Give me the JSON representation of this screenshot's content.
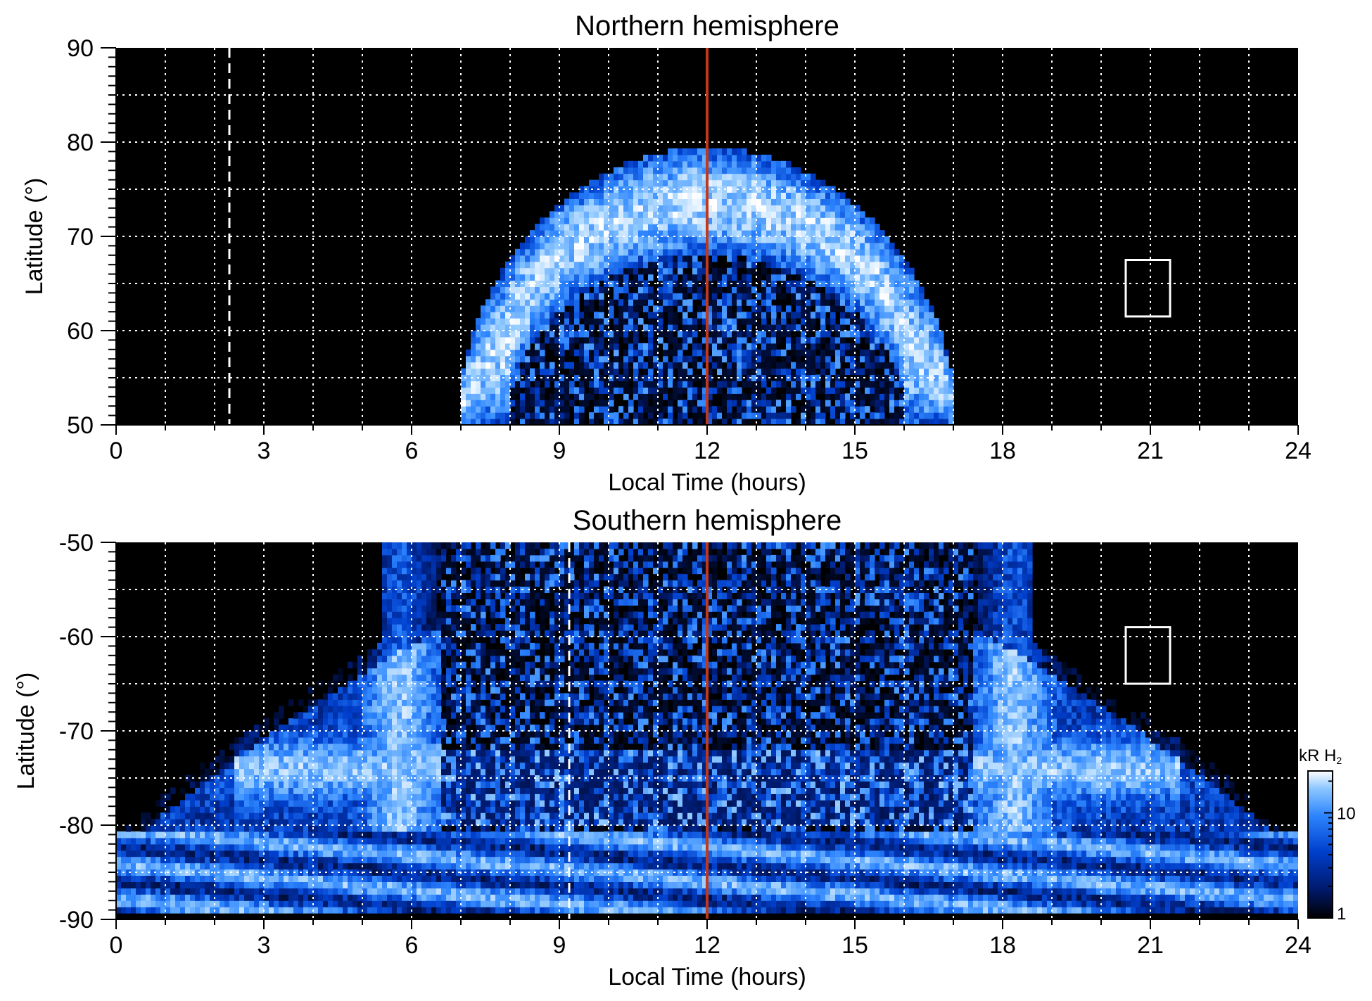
{
  "figure": {
    "colorbar": {
      "label_main": "kR H",
      "label_sub": "2",
      "ticks": [
        {
          "value": 1,
          "label": "1"
        },
        {
          "value": 10,
          "label": "10"
        }
      ],
      "range": [
        1,
        25
      ],
      "scale": "log",
      "colormap": [
        "#000000",
        "#001a6e",
        "#003fcc",
        "#2e86ff",
        "#8cc6ff",
        "#ffffff"
      ]
    }
  },
  "chart_data": [
    {
      "type": "heatmap",
      "title": "Northern hemisphere",
      "xlabel": "Local Time (hours)",
      "ylabel": "Latitude (°)",
      "xlim": [
        0,
        24
      ],
      "ylim": [
        50,
        90
      ],
      "xticks": [
        0,
        3,
        6,
        9,
        12,
        15,
        18,
        21,
        24
      ],
      "xtick_labels": [
        "0",
        "3",
        "6",
        "9",
        "12",
        "15",
        "18",
        "21",
        "24"
      ],
      "yticks": [
        50,
        60,
        70,
        80,
        90
      ],
      "ytick_labels": [
        "50",
        "60",
        "70",
        "80",
        "90"
      ],
      "grid": true,
      "grid_x_step": 1,
      "grid_y_step": 5,
      "colorbar_unit": "kR H2",
      "auroral_oval": {
        "center_lt": 12,
        "lt_span": [
          7,
          17.1
        ],
        "max_lat": 79.5,
        "inner_lat_top": 68,
        "brightness_kR": "10-25"
      },
      "markers": {
        "red_line_lt": 12,
        "dashed_line_lt": 2.3,
        "box": {
          "lt": [
            20.5,
            21.4
          ],
          "lat": [
            61.5,
            67.5
          ]
        }
      }
    },
    {
      "type": "heatmap",
      "title": "Southern hemisphere",
      "xlabel": "Local Time (hours)",
      "ylabel": "Latitude (°)",
      "xlim": [
        0,
        24
      ],
      "ylim": [
        -90,
        -50
      ],
      "xticks": [
        0,
        3,
        6,
        9,
        12,
        15,
        18,
        21,
        24
      ],
      "xtick_labels": [
        "0",
        "3",
        "6",
        "9",
        "12",
        "15",
        "18",
        "21",
        "24"
      ],
      "yticks": [
        -90,
        -80,
        -70,
        -60,
        -50
      ],
      "ytick_labels": [
        "-90",
        "-80",
        "-70",
        "-60",
        "-50"
      ],
      "grid": true,
      "grid_x_step": 1,
      "grid_y_step": 5,
      "colorbar_unit": "kR H2",
      "auroral_oval": {
        "center_lt": 12,
        "lt_span": [
          0,
          24
        ],
        "bright_arcs_lat": [
          -75,
          -73
        ],
        "pole_band_lat": [
          -90,
          -81
        ],
        "brightness_kR": "5-25"
      },
      "markers": {
        "red_line_lt": 12,
        "dashed_line_lt": 9.2,
        "box": {
          "lt": [
            20.5,
            21.4
          ],
          "lat": [
            -65,
            -59
          ]
        }
      }
    }
  ]
}
